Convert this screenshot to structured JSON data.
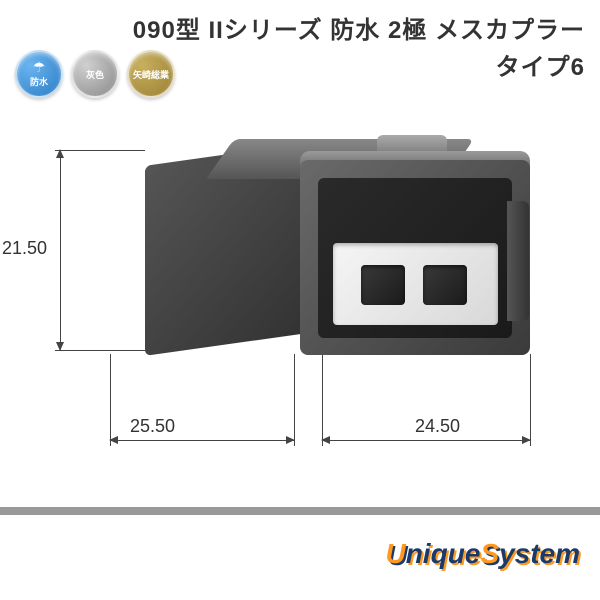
{
  "title": {
    "line1": "090型 IIシリーズ 防水 2極 メスカプラー",
    "line2": "タイプ6"
  },
  "badges": [
    {
      "type": "waterproof",
      "icon": "☂",
      "label": "防水",
      "bg": "blue"
    },
    {
      "type": "color",
      "icon": "",
      "label": "灰色",
      "bg": "gray"
    },
    {
      "type": "manufacturer",
      "icon": "",
      "label": "矢崎総業",
      "bg": "olive"
    }
  ],
  "dimensions": {
    "height": "21.50",
    "depth": "25.50",
    "width": "24.50"
  },
  "connector": {
    "type": "2-pole-female-waterproof",
    "body_color": "#4a4a4a",
    "insert_color": "#e8e8e8",
    "pole_count": 2
  },
  "logo": {
    "part1a": "U",
    "part1b": "nique",
    "part2a": "S",
    "part2b": "ystem"
  },
  "colors": {
    "title_text": "#333333",
    "dim_text": "#333333",
    "dim_line": "#444444",
    "divider": "#999999",
    "logo_orange": "#ff9820",
    "logo_navy": "#1a3a6a",
    "background": "#ffffff"
  },
  "typography": {
    "title_fontsize": 24,
    "dim_fontsize": 18,
    "badge_fontsize": 9,
    "logo_fontsize": 28
  }
}
